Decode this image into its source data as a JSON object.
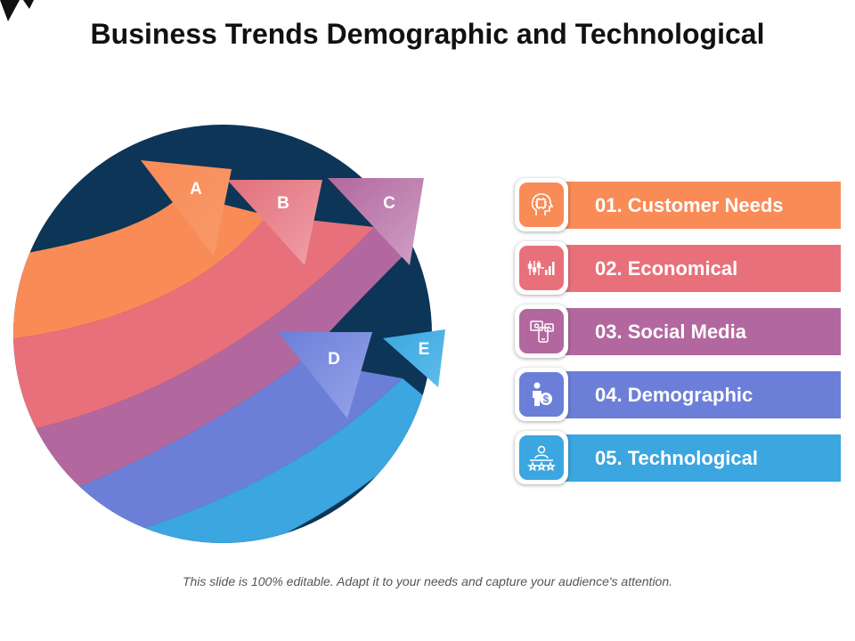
{
  "title": "Business Trends Demographic and Technological",
  "arrows": [
    {
      "letter": "A",
      "color": "#F98B57"
    },
    {
      "letter": "B",
      "color": "#E8707A"
    },
    {
      "letter": "C",
      "color": "#B2689E"
    },
    {
      "letter": "D",
      "color": "#6C7FD8"
    },
    {
      "letter": "E",
      "color": "#3BA6E0"
    }
  ],
  "circle_color": "#0D3557",
  "items": [
    {
      "label": "01. Customer Needs",
      "color": "#F98B57",
      "icon": "head-chip-icon"
    },
    {
      "label": "02. Economical",
      "color": "#E8707A",
      "icon": "finance-chart-icon"
    },
    {
      "label": "03. Social Media",
      "color": "#B2689E",
      "icon": "social-devices-icon"
    },
    {
      "label": "04. Demographic",
      "color": "#6C7FD8",
      "icon": "person-money-icon"
    },
    {
      "label": "05. Technological",
      "color": "#3BA6E0",
      "icon": "user-rating-icon"
    }
  ],
  "footer": "This slide is 100% editable. Adapt it to your needs and capture your audience's attention."
}
